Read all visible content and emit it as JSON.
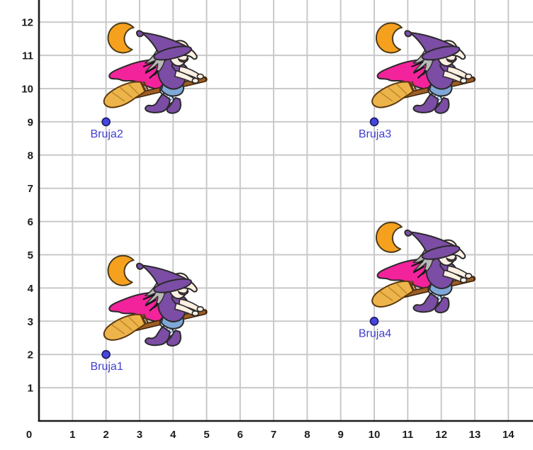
{
  "view": {
    "description": "coordinate-grid-graphics-view",
    "background_color": "#ffffff",
    "grid_color": "#c9c9c9",
    "axis_color": "#1c1c1c",
    "tick_label_color": "#1c1c1c"
  },
  "chart_data": {
    "type": "scatter",
    "title": "",
    "xlabel": "",
    "ylabel": "",
    "xlim": [
      0,
      14.73
    ],
    "ylim": [
      0,
      12.68
    ],
    "grid": true,
    "x_ticks": [
      0,
      1,
      2,
      3,
      4,
      5,
      6,
      7,
      8,
      9,
      10,
      11,
      12,
      13,
      14
    ],
    "y_ticks": [
      1,
      2,
      3,
      4,
      5,
      6,
      7,
      8,
      9,
      10,
      11,
      12
    ],
    "points": [
      {
        "label": "Bruja1",
        "x": 2,
        "y": 2
      },
      {
        "label": "Bruja2",
        "x": 2,
        "y": 9
      },
      {
        "label": "Bruja3",
        "x": 10,
        "y": 9
      },
      {
        "label": "Bruja4",
        "x": 10,
        "y": 3
      }
    ],
    "point_style": {
      "fill": "#4747de",
      "stroke": "#181860",
      "radius": 5.5
    },
    "label_color": "#4040ce",
    "decoration_per_point": "witch-on-broomstick-with-crescent-moon-icon",
    "sprite_colors": {
      "moon_orange": "#f6a11e",
      "hat_dress_purple": "#7c4da5",
      "hat_band_pink": "#d36cc0",
      "cape_magenta": "#f2239b",
      "hair_gray": "#b9b9b9",
      "skin": "#fdf0e3",
      "broom_bristles_tan": "#edb44c",
      "broom_stick_brown": "#9d5d24",
      "pants_blue": "#7fa8d8"
    }
  }
}
